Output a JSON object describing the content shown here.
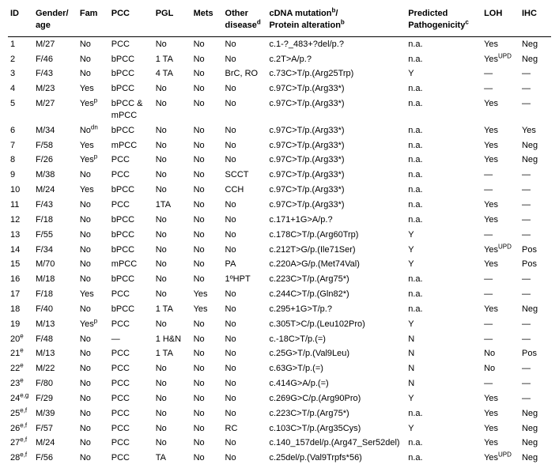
{
  "columns": [
    {
      "label": "ID",
      "width": "4%"
    },
    {
      "label": "Gender/\nage",
      "width": "7%"
    },
    {
      "label": "Fam",
      "width": "5%"
    },
    {
      "label": "PCC",
      "width": "7%"
    },
    {
      "label": "PGL",
      "width": "6%"
    },
    {
      "label": "Mets",
      "width": "5%"
    },
    {
      "label": "Other\ndisease",
      "sup": "d",
      "width": "7%"
    },
    {
      "label": "cDNA mutation",
      "sup": "b",
      "extra": "/\nProtein alteration",
      "sup2": "b",
      "width": "22%"
    },
    {
      "label": "Predicted\nPathogenicity",
      "sup": "c",
      "width": "12%"
    },
    {
      "label": "LOH",
      "width": "6%"
    },
    {
      "label": "IHC",
      "width": "5%"
    }
  ],
  "rows": [
    {
      "id": "1",
      "ga": "M/27",
      "fam": "No",
      "pcc": "PCC",
      "pgl": "No",
      "mets": "No",
      "other": "No",
      "mut": "c.1-?_483+?del/p.?",
      "path": "n.a.",
      "loh": "Yes",
      "ihc": "Neg"
    },
    {
      "id": "2",
      "ga": "F/46",
      "fam": "No",
      "pcc": "bPCC",
      "pgl": "1 TA",
      "mets": "No",
      "other": "No",
      "mut": "c.2T>A/p.?",
      "path": "n.a.",
      "loh": "Yes",
      "lohsup": "UPD",
      "ihc": "Neg"
    },
    {
      "id": "3",
      "ga": "F/43",
      "fam": "No",
      "pcc": "bPCC",
      "pgl": "4 TA",
      "mets": "No",
      "other": "BrC, RO",
      "mut": "c.73C>T/p.(Arg25Trp)",
      "path": "Y",
      "loh": "—",
      "ihc": "—"
    },
    {
      "id": "4",
      "ga": "M/23",
      "fam": "Yes",
      "pcc": "bPCC",
      "pgl": "No",
      "mets": "No",
      "other": "No",
      "mut": "c.97C>T/p.(Arg33*)",
      "path": "n.a.",
      "loh": "—",
      "ihc": "—"
    },
    {
      "id": "5",
      "ga": "M/27",
      "fam": "Yes",
      "famsup": "p",
      "pcc": "bPCC &\nmPCC",
      "pgl": "No",
      "mets": "No",
      "other": "No",
      "mut": "c.97C>T/p.(Arg33*)",
      "path": "n.a.",
      "loh": "Yes",
      "ihc": "—"
    },
    {
      "id": "6",
      "ga": "M/34",
      "fam": "No",
      "famsup": "dn",
      "pcc": "bPCC",
      "pgl": "No",
      "mets": "No",
      "other": "No",
      "mut": "c.97C>T/p.(Arg33*)",
      "path": "n.a.",
      "loh": "Yes",
      "ihc": "Yes"
    },
    {
      "id": "7",
      "ga": "F/58",
      "fam": "Yes",
      "pcc": "mPCC",
      "pgl": "No",
      "mets": "No",
      "other": "No",
      "mut": "c.97C>T/p.(Arg33*)",
      "path": "n.a.",
      "loh": "Yes",
      "ihc": "Neg"
    },
    {
      "id": "8",
      "ga": "F/26",
      "fam": "Yes",
      "famsup": "p",
      "pcc": "PCC",
      "pgl": "No",
      "mets": "No",
      "other": "No",
      "mut": "c.97C>T/p.(Arg33*)",
      "path": "n.a.",
      "loh": "Yes",
      "ihc": "Neg"
    },
    {
      "id": "9",
      "ga": "M/38",
      "fam": "No",
      "pcc": "PCC",
      "pgl": "No",
      "mets": "No",
      "other": "SCCT",
      "mut": "c.97C>T/p.(Arg33*)",
      "path": "n.a.",
      "loh": "—",
      "ihc": "—"
    },
    {
      "id": "10",
      "ga": "M/24",
      "fam": "Yes",
      "pcc": "bPCC",
      "pgl": "No",
      "mets": "No",
      "other": "CCH",
      "mut": "c.97C>T/p.(Arg33*)",
      "path": "n.a.",
      "loh": "—",
      "ihc": "—"
    },
    {
      "id": "11",
      "ga": "F/43",
      "fam": "No",
      "pcc": "PCC",
      "pgl": "1TA",
      "mets": "No",
      "other": "No",
      "mut": "c.97C>T/p.(Arg33*)",
      "path": "n.a.",
      "loh": "Yes",
      "ihc": "—"
    },
    {
      "id": "12",
      "ga": "F/18",
      "fam": "No",
      "pcc": "bPCC",
      "pgl": "No",
      "mets": "No",
      "other": "No",
      "mut": "c.171+1G>A/p.?",
      "path": "n.a.",
      "loh": "Yes",
      "ihc": "—"
    },
    {
      "id": "13",
      "ga": "F/55",
      "fam": "No",
      "pcc": "bPCC",
      "pgl": "No",
      "mets": "No",
      "other": "No",
      "mut": "c.178C>T/p.(Arg60Trp)",
      "path": "Y",
      "loh": "—",
      "ihc": "—"
    },
    {
      "id": "14",
      "ga": "F/34",
      "fam": "No",
      "pcc": "bPCC",
      "pgl": "No",
      "mets": "No",
      "other": "No",
      "mut": "c.212T>G/p.(Ile71Ser)",
      "path": "Y",
      "loh": "Yes",
      "lohsup": "UPD",
      "ihc": "Pos"
    },
    {
      "id": "15",
      "ga": "M/70",
      "fam": "No",
      "pcc": "mPCC",
      "pgl": "No",
      "mets": "No",
      "other": "PA",
      "mut": "c.220A>G/p.(Met74Val)",
      "path": "Y",
      "loh": "Yes",
      "ihc": "Pos"
    },
    {
      "id": "16",
      "ga": "M/18",
      "fam": "No",
      "pcc": "bPCC",
      "pgl": "No",
      "mets": "No",
      "other": "1ºHPT",
      "mut": "c.223C>T/p.(Arg75*)",
      "path": "n.a.",
      "loh": "—",
      "ihc": "—"
    },
    {
      "id": "17",
      "ga": "F/18",
      "fam": "Yes",
      "pcc": "PCC",
      "pgl": "No",
      "mets": "Yes",
      "other": "No",
      "mut": "c.244C>T/p.(Gln82*)",
      "path": "n.a.",
      "loh": "—",
      "ihc": "—"
    },
    {
      "id": "18",
      "ga": "F/40",
      "fam": "No",
      "pcc": "bPCC",
      "pgl": "1 TA",
      "mets": "Yes",
      "other": "No",
      "mut": "c.295+1G>T/p.?",
      "path": "n.a.",
      "loh": "Yes",
      "ihc": "Neg"
    },
    {
      "id": "19",
      "ga": "M/13",
      "fam": "Yes",
      "famsup": "p",
      "pcc": "PCC",
      "pgl": "No",
      "mets": "No",
      "other": "No",
      "mut": "c.305T>C/p.(Leu102Pro)",
      "path": "Y",
      "loh": "—",
      "ihc": "—"
    },
    {
      "id": "20",
      "idsup": "e",
      "ga": "F/48",
      "fam": "No",
      "pcc": "—",
      "pgl": "1 H&N",
      "mets": "No",
      "other": "No",
      "mut": "c.-18C>T/p.(=)",
      "path": "N",
      "loh": "—",
      "ihc": "—"
    },
    {
      "id": "21",
      "idsup": "e",
      "ga": "M/13",
      "fam": "No",
      "pcc": "PCC",
      "pgl": "1 TA",
      "mets": "No",
      "other": "No",
      "mut": "c.25G>T/p.(Val9Leu)",
      "path": "N",
      "loh": "No",
      "ihc": "Pos"
    },
    {
      "id": "22",
      "idsup": "e",
      "ga": "M/22",
      "fam": "No",
      "pcc": "PCC",
      "pgl": "No",
      "mets": "No",
      "other": "No",
      "mut": "c.63G>T/p.(=)",
      "path": "N",
      "loh": "No",
      "ihc": "—"
    },
    {
      "id": "23",
      "idsup": "e",
      "ga": "F/80",
      "fam": "No",
      "pcc": "PCC",
      "pgl": "No",
      "mets": "No",
      "other": "No",
      "mut": "c.414G>A/p.(=)",
      "path": "N",
      "loh": "—",
      "ihc": "—"
    },
    {
      "id": "24",
      "idsup": "e,g",
      "ga": "F/29",
      "fam": "No",
      "pcc": "PCC",
      "pgl": "No",
      "mets": "No",
      "other": "No",
      "mut": "c.269G>C/p.(Arg90Pro)",
      "path": "Y",
      "loh": "Yes",
      "ihc": "—"
    },
    {
      "id": "25",
      "idsup": "e,f",
      "ga": "M/39",
      "fam": "No",
      "pcc": "PCC",
      "pgl": "No",
      "mets": "No",
      "other": "No",
      "mut": "c.223C>T/p.(Arg75*)",
      "path": "n.a.",
      "loh": "Yes",
      "ihc": "Neg"
    },
    {
      "id": "26",
      "idsup": "e,f",
      "ga": "F/57",
      "fam": "No",
      "pcc": "PCC",
      "pgl": "No",
      "mets": "No",
      "other": "RC",
      "mut": "c.103C>T/p.(Arg35Cys)",
      "path": "Y",
      "loh": "Yes",
      "ihc": "Neg"
    },
    {
      "id": "27",
      "idsup": "e,f",
      "ga": "M/24",
      "fam": "No",
      "pcc": "PCC",
      "pgl": "No",
      "mets": "No",
      "other": "No",
      "mut": "c.140_157del/p.(Arg47_Ser52del)",
      "path": "n.a.",
      "loh": "Yes",
      "ihc": "Neg"
    },
    {
      "id": "28",
      "idsup": "e,f",
      "ga": "F/56",
      "fam": "No",
      "pcc": "PCC",
      "pgl": "TA",
      "mets": "No",
      "other": "No",
      "mut": "c.25del/p.(Val9Trpfs*56)",
      "path": "n.a.",
      "loh": "Yes",
      "lohsup": "UPD",
      "ihc": "Neg"
    }
  ]
}
